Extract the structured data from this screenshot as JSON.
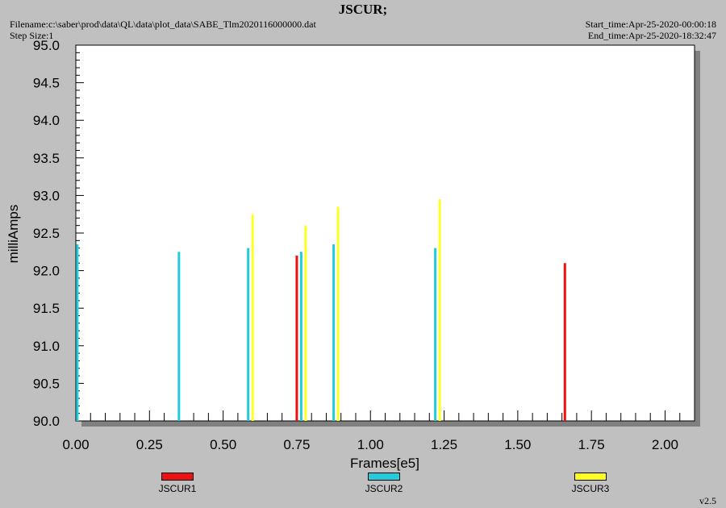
{
  "header": {
    "title": "JSCUR;",
    "filename": "Filename:c:\\saber\\prod\\data\\QL\\data\\plot_data\\SABE_Tlm2020116000000.dat",
    "step_size": "Step Size:1",
    "start_time": "Start_time:Apr-25-2020-00:00:18",
    "end_time": "End_time:Apr-25-2020-18:32:47"
  },
  "version": "v2.5",
  "colors": {
    "JSCUR1": "#ee1111",
    "JSCUR2": "#22ccdd",
    "JSCUR3": "#ffff22"
  },
  "chart_data": {
    "type": "bar",
    "xlabel": "Frames[e5]",
    "ylabel": "milliAmps",
    "xlim": [
      0,
      2.1
    ],
    "ylim": [
      90.0,
      95.0
    ],
    "xticks": [
      "0.00",
      "0.25",
      "0.50",
      "0.75",
      "1.00",
      "1.25",
      "1.50",
      "1.75",
      "2.00"
    ],
    "yticks": [
      "90.0",
      "90.5",
      "91.0",
      "91.5",
      "92.0",
      "92.5",
      "93.0",
      "93.5",
      "94.0",
      "94.5",
      "95.0"
    ],
    "legend_position": "bottom",
    "grid": false,
    "series": [
      {
        "name": "JSCUR1",
        "color": "#ee1111",
        "points": [
          {
            "x": 0.75,
            "y": 92.2
          },
          {
            "x": 1.66,
            "y": 92.1
          }
        ]
      },
      {
        "name": "JSCUR2",
        "color": "#22ccdd",
        "points": [
          {
            "x": 0.005,
            "y": 92.35
          },
          {
            "x": 0.35,
            "y": 92.25
          },
          {
            "x": 0.585,
            "y": 92.3
          },
          {
            "x": 0.765,
            "y": 92.25
          },
          {
            "x": 0.875,
            "y": 92.35
          },
          {
            "x": 1.22,
            "y": 92.3
          }
        ]
      },
      {
        "name": "JSCUR3",
        "color": "#ffff22",
        "points": [
          {
            "x": 0.6,
            "y": 92.75
          },
          {
            "x": 0.78,
            "y": 92.6
          },
          {
            "x": 0.89,
            "y": 92.85
          },
          {
            "x": 1.235,
            "y": 92.95
          }
        ]
      }
    ]
  }
}
